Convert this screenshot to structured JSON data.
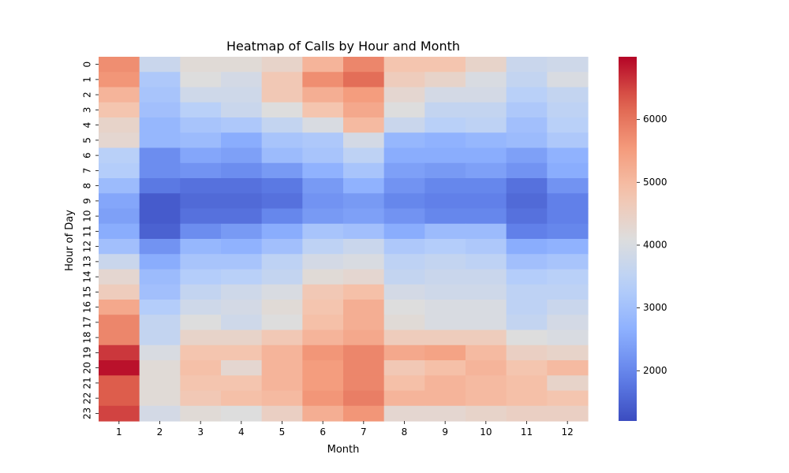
{
  "chart_data": {
    "type": "heatmap",
    "title": "Heatmap of Calls by Hour and Month",
    "xlabel": "Month",
    "ylabel": "Hour of Day",
    "x_categories": [
      "1",
      "2",
      "3",
      "4",
      "5",
      "6",
      "7",
      "8",
      "9",
      "10",
      "11",
      "12"
    ],
    "y_categories": [
      "0",
      "1",
      "2",
      "3",
      "4",
      "5",
      "6",
      "7",
      "8",
      "9",
      "10",
      "11",
      "12",
      "13",
      "14",
      "15",
      "16",
      "17",
      "18",
      "19",
      "20",
      "21",
      "22",
      "23"
    ],
    "colorbar": {
      "min": 1200,
      "max": 7000,
      "ticks": [
        2000,
        3000,
        4000,
        5000,
        6000
      ],
      "tick_labels": [
        "2000",
        "3000",
        "4000",
        "5000",
        "6000"
      ],
      "colormap": "coolwarm"
    },
    "values": [
      [
        5700,
        3700,
        4200,
        4200,
        4400,
        5100,
        5800,
        4800,
        4800,
        4400,
        3700,
        3800
      ],
      [
        5600,
        3200,
        4100,
        3900,
        4700,
        5700,
        6100,
        4600,
        4400,
        4000,
        3600,
        4000
      ],
      [
        5100,
        3100,
        3800,
        3800,
        4700,
        5200,
        5500,
        4300,
        3900,
        3900,
        3400,
        3600
      ],
      [
        4800,
        3000,
        3400,
        3700,
        4100,
        4800,
        5300,
        4100,
        3600,
        3600,
        3200,
        3500
      ],
      [
        4400,
        2800,
        3100,
        3200,
        3600,
        4000,
        5000,
        3700,
        3400,
        3500,
        3000,
        3400
      ],
      [
        4300,
        2800,
        2900,
        2600,
        3100,
        3200,
        3900,
        2800,
        2700,
        2800,
        2900,
        3200
      ],
      [
        3400,
        2100,
        2500,
        2400,
        2900,
        3100,
        3500,
        2600,
        2600,
        2600,
        2400,
        2700
      ],
      [
        3300,
        2100,
        2200,
        2100,
        2300,
        2700,
        3100,
        2400,
        2300,
        2400,
        2200,
        2600
      ],
      [
        2900,
        1800,
        1700,
        1700,
        1800,
        2300,
        2700,
        2200,
        2000,
        2000,
        1700,
        2200
      ],
      [
        2500,
        1400,
        1600,
        1600,
        1700,
        2200,
        2300,
        2000,
        1900,
        1900,
        1600,
        1900
      ],
      [
        2400,
        1400,
        1700,
        1700,
        2000,
        2300,
        2400,
        2200,
        2000,
        2000,
        1700,
        1900
      ],
      [
        2600,
        1500,
        2100,
        2300,
        2600,
        3100,
        3000,
        2600,
        2900,
        2900,
        1900,
        2000
      ],
      [
        3000,
        2200,
        2800,
        2700,
        3000,
        3500,
        3700,
        3200,
        3300,
        3200,
        2600,
        2700
      ],
      [
        3700,
        2600,
        3100,
        3100,
        3500,
        3900,
        4000,
        3500,
        3600,
        3500,
        3000,
        3100
      ],
      [
        4300,
        2900,
        3300,
        3400,
        3600,
        4200,
        4300,
        3600,
        3700,
        3700,
        3300,
        3400
      ],
      [
        4600,
        3000,
        3600,
        3800,
        4000,
        4700,
        4900,
        3900,
        3800,
        3800,
        3500,
        3500
      ],
      [
        5300,
        3300,
        3800,
        3900,
        4200,
        4800,
        5200,
        4100,
        4000,
        4000,
        3500,
        3700
      ],
      [
        5800,
        3600,
        4100,
        3800,
        4100,
        4900,
        5200,
        4200,
        4000,
        4000,
        3600,
        3900
      ],
      [
        5800,
        3600,
        4400,
        4400,
        4700,
        5100,
        5300,
        4600,
        4600,
        4600,
        4100,
        4000
      ],
      [
        6600,
        4000,
        4800,
        4800,
        5100,
        5600,
        5800,
        5300,
        5400,
        5000,
        4500,
        4400
      ],
      [
        6900,
        4200,
        4900,
        4300,
        5100,
        5500,
        5800,
        4700,
        4900,
        5100,
        4800,
        5000
      ],
      [
        6300,
        4200,
        4800,
        4800,
        5100,
        5500,
        5800,
        4900,
        5100,
        5000,
        4900,
        4400
      ],
      [
        6300,
        4200,
        4700,
        4900,
        5000,
        5600,
        5900,
        5100,
        5100,
        5000,
        4900,
        4800
      ],
      [
        6500,
        3900,
        4200,
        4100,
        4500,
        5200,
        5600,
        4300,
        4300,
        4400,
        4500,
        4500
      ]
    ]
  }
}
